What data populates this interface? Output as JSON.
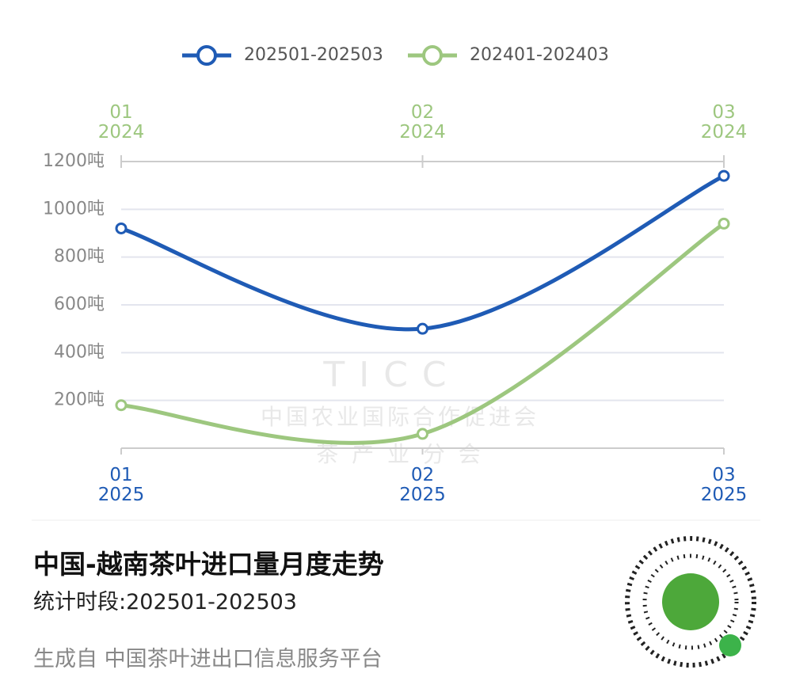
{
  "chart_data": {
    "type": "line",
    "title": "中国-越南茶叶进口量月度走势",
    "subtitle": "统计时段:202501-202503",
    "footer": "生成自 中国茶叶进出口信息服务平台",
    "watermark": [
      "TICC",
      "中国农业国际合作促进会",
      "茶 产 业 分 会"
    ],
    "categories": [
      "01\n2025",
      "02\n2025",
      "03\n2025"
    ],
    "x2_categories": [
      "01\n2024",
      "02\n2024",
      "03\n2024"
    ],
    "series": [
      {
        "name": "202501-202503",
        "color": "#1f5bb5",
        "values": [
          920,
          500,
          1140
        ]
      },
      {
        "name": "202401-202403",
        "color": "#9dc77f",
        "values": [
          180,
          60,
          940
        ],
        "axis": "x2"
      }
    ],
    "ylim": [
      0,
      1200
    ],
    "yticks": [
      {
        "value": 200,
        "label": "200吨"
      },
      {
        "value": 400,
        "label": "400吨"
      },
      {
        "value": 600,
        "label": "600吨"
      },
      {
        "value": 800,
        "label": "800吨"
      },
      {
        "value": 1000,
        "label": "1000吨"
      },
      {
        "value": 1200,
        "label": "1200吨"
      }
    ],
    "grid": true,
    "legend": "top"
  }
}
